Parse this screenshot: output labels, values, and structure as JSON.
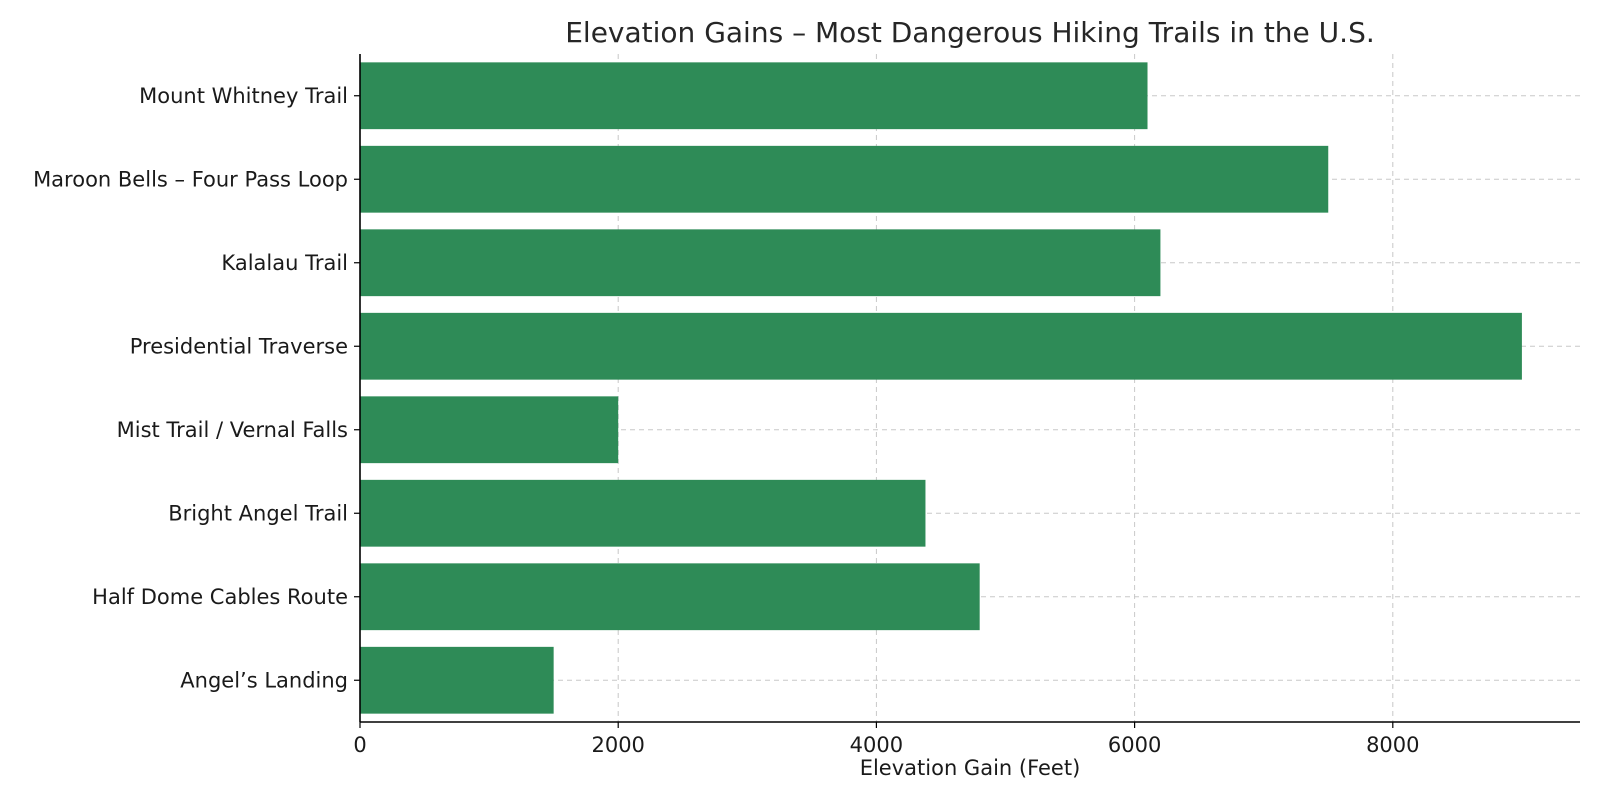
{
  "chart_data": {
    "type": "bar",
    "orientation": "horizontal",
    "title": "Elevation Gains – Most Dangerous Hiking Trails in the U.S.",
    "xlabel": "Elevation Gain (Feet)",
    "ylabel": "",
    "categories": [
      "Angel’s Landing",
      "Half Dome Cables Route",
      "Bright Angel Trail",
      "Mist Trail / Vernal Falls",
      "Presidential Traverse",
      "Kalalau Trail",
      "Maroon Bells – Four Pass Loop",
      "Mount Whitney Trail"
    ],
    "values": [
      1500,
      4800,
      4380,
      2000,
      9000,
      6200,
      7500,
      6100
    ],
    "xlim": [
      0,
      9450
    ],
    "xticks": [
      0,
      2000,
      4000,
      6000,
      8000
    ],
    "xtick_labels": [
      "0",
      "2000",
      "4000",
      "6000",
      "8000"
    ],
    "grid": true,
    "bar_color": "#2e8b57"
  }
}
